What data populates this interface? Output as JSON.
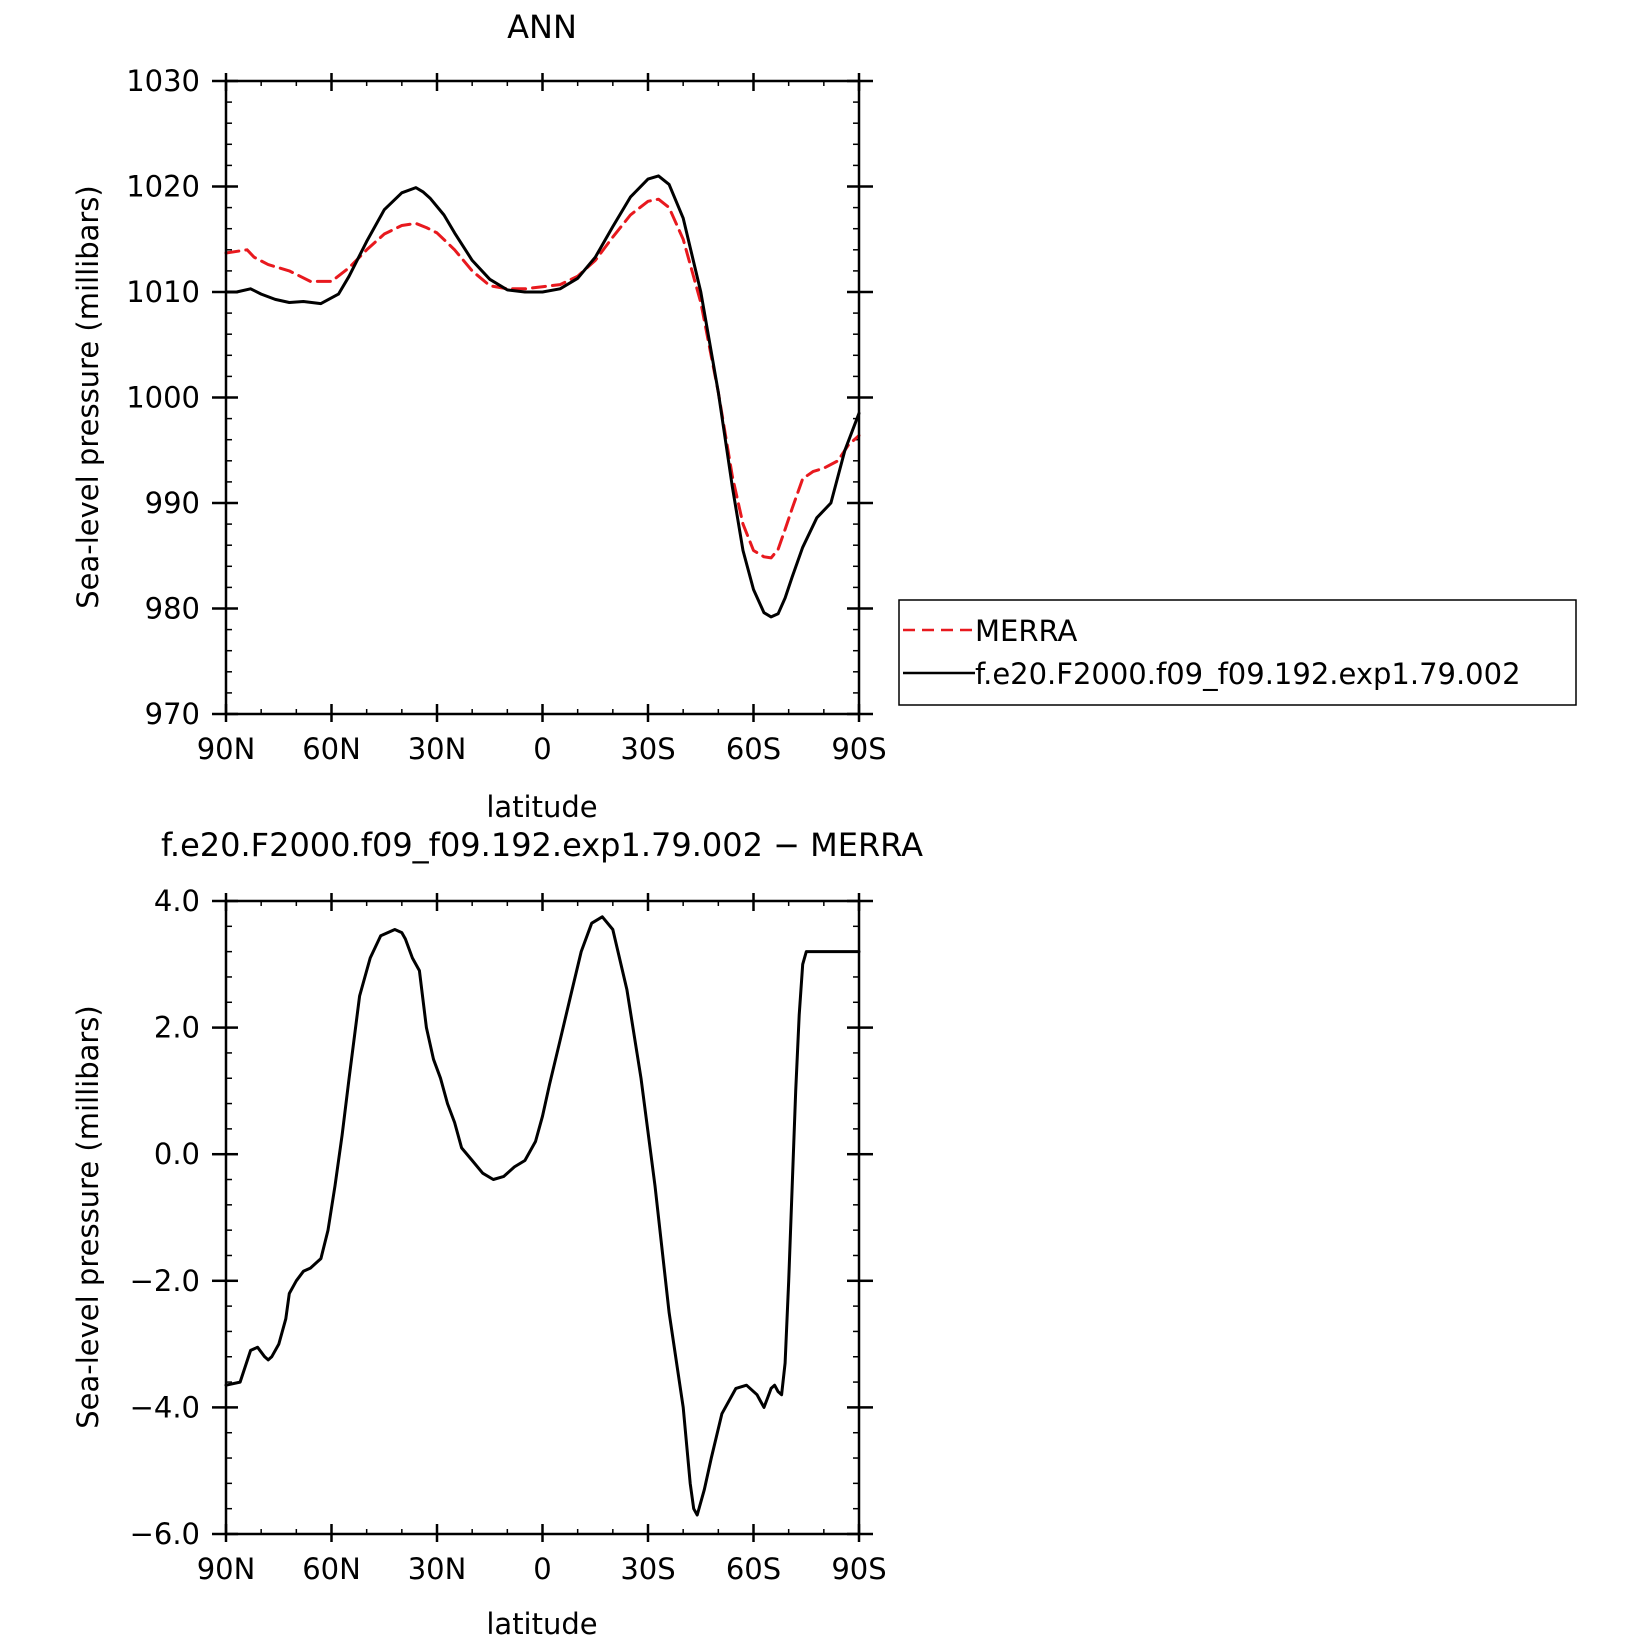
{
  "colors": {
    "merra": "#e8191e",
    "model": "#000000"
  },
  "chart_data": [
    {
      "type": "line",
      "title": "ANN",
      "xlabel": "latitude",
      "ylabel": "Sea-level pressure (millibars)",
      "x_tick_labels": [
        "90N",
        "60N",
        "30N",
        "0",
        "30S",
        "60S",
        "90S"
      ],
      "y_tick_labels": [
        "970",
        "980",
        "990",
        "1000",
        "1010",
        "1020",
        "1030"
      ],
      "xlim": [
        90,
        -90
      ],
      "ylim": [
        970,
        1030
      ],
      "legend_position": "right",
      "series": [
        {
          "name": "MERRA",
          "color": "#e8191e",
          "dash": "dashed",
          "x": [
            90,
            84,
            82,
            78,
            72,
            66,
            60,
            55,
            50,
            45,
            40,
            36,
            33,
            30,
            25,
            20,
            15,
            10,
            5,
            0,
            -5,
            -10,
            -15,
            -20,
            -25,
            -30,
            -33,
            -36,
            -40,
            -45,
            -50,
            -54,
            -57,
            -60,
            -63,
            -65,
            -67,
            -69,
            -71,
            -74,
            -77,
            -80,
            -84,
            -87,
            -90
          ],
          "y": [
            1013.7,
            1014.0,
            1013.3,
            1012.6,
            1012.0,
            1011.0,
            1011.0,
            1012.3,
            1014.0,
            1015.5,
            1016.3,
            1016.5,
            1016.1,
            1015.6,
            1014.0,
            1012.0,
            1010.6,
            1010.3,
            1010.3,
            1010.5,
            1010.7,
            1011.5,
            1013.0,
            1015.2,
            1017.3,
            1018.6,
            1018.8,
            1018.0,
            1015.0,
            1009.0,
            1000.5,
            992.5,
            988.0,
            985.5,
            984.9,
            984.8,
            985.6,
            987.5,
            989.5,
            992.3,
            993.0,
            993.3,
            994.0,
            995.5,
            996.4
          ]
        },
        {
          "name": "f.e20.F2000.f09_f09.192.exp1.79.002",
          "color": "#000000",
          "dash": "solid",
          "x": [
            90,
            87,
            83,
            80,
            76,
            72,
            68,
            63,
            58,
            55,
            50,
            45,
            40,
            36,
            34,
            32,
            28,
            25,
            20,
            15,
            10,
            5,
            0,
            -5,
            -10,
            -15,
            -20,
            -25,
            -30,
            -33,
            -36,
            -40,
            -45,
            -50,
            -54,
            -57,
            -60,
            -63,
            -65,
            -67,
            -69,
            -71,
            -74,
            -78,
            -82,
            -86,
            -90
          ],
          "y": [
            1010.0,
            1010.0,
            1010.3,
            1009.8,
            1009.3,
            1009.0,
            1009.1,
            1008.9,
            1009.8,
            1011.5,
            1014.8,
            1017.8,
            1019.4,
            1019.9,
            1019.5,
            1018.9,
            1017.3,
            1015.6,
            1013.0,
            1011.2,
            1010.2,
            1010.0,
            1010.0,
            1010.3,
            1011.3,
            1013.3,
            1016.2,
            1019.0,
            1020.7,
            1021.0,
            1020.2,
            1017.0,
            1010.0,
            1000.5,
            991.5,
            985.5,
            981.8,
            979.6,
            979.2,
            979.5,
            981.0,
            983.0,
            985.8,
            988.6,
            990.0,
            995.0,
            998.5
          ]
        }
      ]
    },
    {
      "type": "line",
      "title": "f.e20.F2000.f09_f09.192.exp1.79.002 − MERRA",
      "xlabel": "latitude",
      "ylabel": "Sea-level pressure (millibars)",
      "x_tick_labels": [
        "90N",
        "60N",
        "30N",
        "0",
        "30S",
        "60S",
        "90S"
      ],
      "y_tick_labels": [
        "−6.0",
        "−4.0",
        "−2.0",
        "0.0",
        "2.0",
        "4.0"
      ],
      "xlim": [
        90,
        -90
      ],
      "ylim": [
        -6,
        4
      ],
      "series": [
        {
          "color": "#000000",
          "dash": "solid",
          "x": [
            90,
            86,
            83,
            81,
            79,
            78,
            77,
            75,
            73,
            72,
            70,
            68,
            66,
            64,
            63,
            61,
            59,
            57,
            55,
            52,
            49,
            46,
            44,
            42,
            40,
            39,
            37,
            35,
            33,
            31,
            29,
            27,
            25,
            23,
            20,
            17,
            14,
            11,
            8,
            5,
            2,
            0,
            -2,
            -5,
            -8,
            -11,
            -14,
            -17,
            -20,
            -24,
            -28,
            -32,
            -36,
            -40,
            -42,
            -43,
            -44,
            -46,
            -48,
            -51,
            -55,
            -58,
            -61,
            -62,
            -63,
            -64,
            -65,
            -66,
            -67,
            -68,
            -69,
            -70,
            -71,
            -72,
            -73,
            -74,
            -75,
            -76,
            -77,
            -78,
            -79,
            -80,
            -81,
            -82,
            -83,
            -84,
            -85,
            -86,
            -87,
            -88,
            -89,
            -90
          ],
          "y": [
            -3.65,
            -3.6,
            -3.1,
            -3.05,
            -3.2,
            -3.25,
            -3.2,
            -3.0,
            -2.6,
            -2.2,
            -2.0,
            -1.85,
            -1.8,
            -1.7,
            -1.65,
            -1.2,
            -0.5,
            0.3,
            1.2,
            2.5,
            3.1,
            3.45,
            3.5,
            3.55,
            3.5,
            3.4,
            3.1,
            2.9,
            2.0,
            1.5,
            1.2,
            0.8,
            0.5,
            0.1,
            -0.1,
            -0.3,
            -0.4,
            -0.35,
            -0.2,
            -0.1,
            0.2,
            0.6,
            1.1,
            1.8,
            2.5,
            3.2,
            3.65,
            3.75,
            3.55,
            2.6,
            1.2,
            -0.5,
            -2.5,
            -4.0,
            -5.2,
            -5.6,
            -5.7,
            -5.3,
            -4.8,
            -4.1,
            -3.7,
            -3.65,
            -3.8,
            -3.9,
            -4.0,
            -3.85,
            -3.7,
            -3.65,
            -3.75,
            -3.8,
            -3.3,
            -2.0,
            -0.5,
            1.0,
            2.2,
            3.0,
            3.2,
            3.2,
            3.2,
            3.2,
            3.2,
            3.2,
            3.2,
            3.2,
            3.2,
            3.2,
            3.2,
            3.2,
            3.2,
            3.2,
            3.2,
            3.2
          ]
        }
      ]
    }
  ]
}
